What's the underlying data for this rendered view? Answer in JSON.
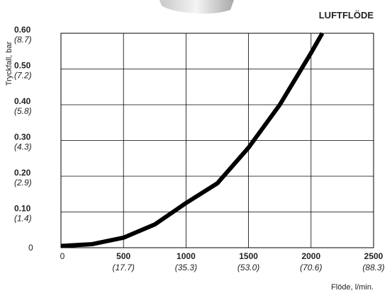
{
  "chart_data": {
    "type": "line",
    "title": "LUFTFLÖDE",
    "y_label": "Tryckfall, bar",
    "x_label": "Flöde, l/min.",
    "x": [
      0,
      250,
      500,
      750,
      1000,
      1250,
      1500,
      1750,
      2000,
      2090
    ],
    "series": [
      {
        "color": "#000000",
        "values": [
          0.005,
          0.01,
          0.028,
          0.065,
          0.125,
          0.18,
          0.28,
          0.4,
          0.545,
          0.6
        ]
      }
    ],
    "xlim": [
      0,
      2500
    ],
    "ylim": [
      0,
      0.6
    ],
    "xticks": [
      0,
      500,
      1000,
      1500,
      2000,
      2500
    ],
    "xtick_sublabels": [
      null,
      "(17.7)",
      "(35.3)",
      "(53.0)",
      "(70.6)",
      "(88.3)"
    ],
    "yticks": [
      0,
      {
        "value": 0.1,
        "label": "0.10"
      },
      {
        "value": 0.2,
        "label": "0.20"
      },
      {
        "value": 0.3,
        "label": "0.30"
      },
      {
        "value": 0.4,
        "label": "0.40"
      },
      {
        "value": 0.5,
        "label": "0.50"
      },
      {
        "value": 0.6,
        "label": "0.60"
      }
    ],
    "ytick_sublabels": [
      null,
      "(1.4)",
      "(2.9)",
      "(4.3)",
      "(5.8)",
      "(7.2)",
      "(8.7)"
    ],
    "grid": true
  }
}
